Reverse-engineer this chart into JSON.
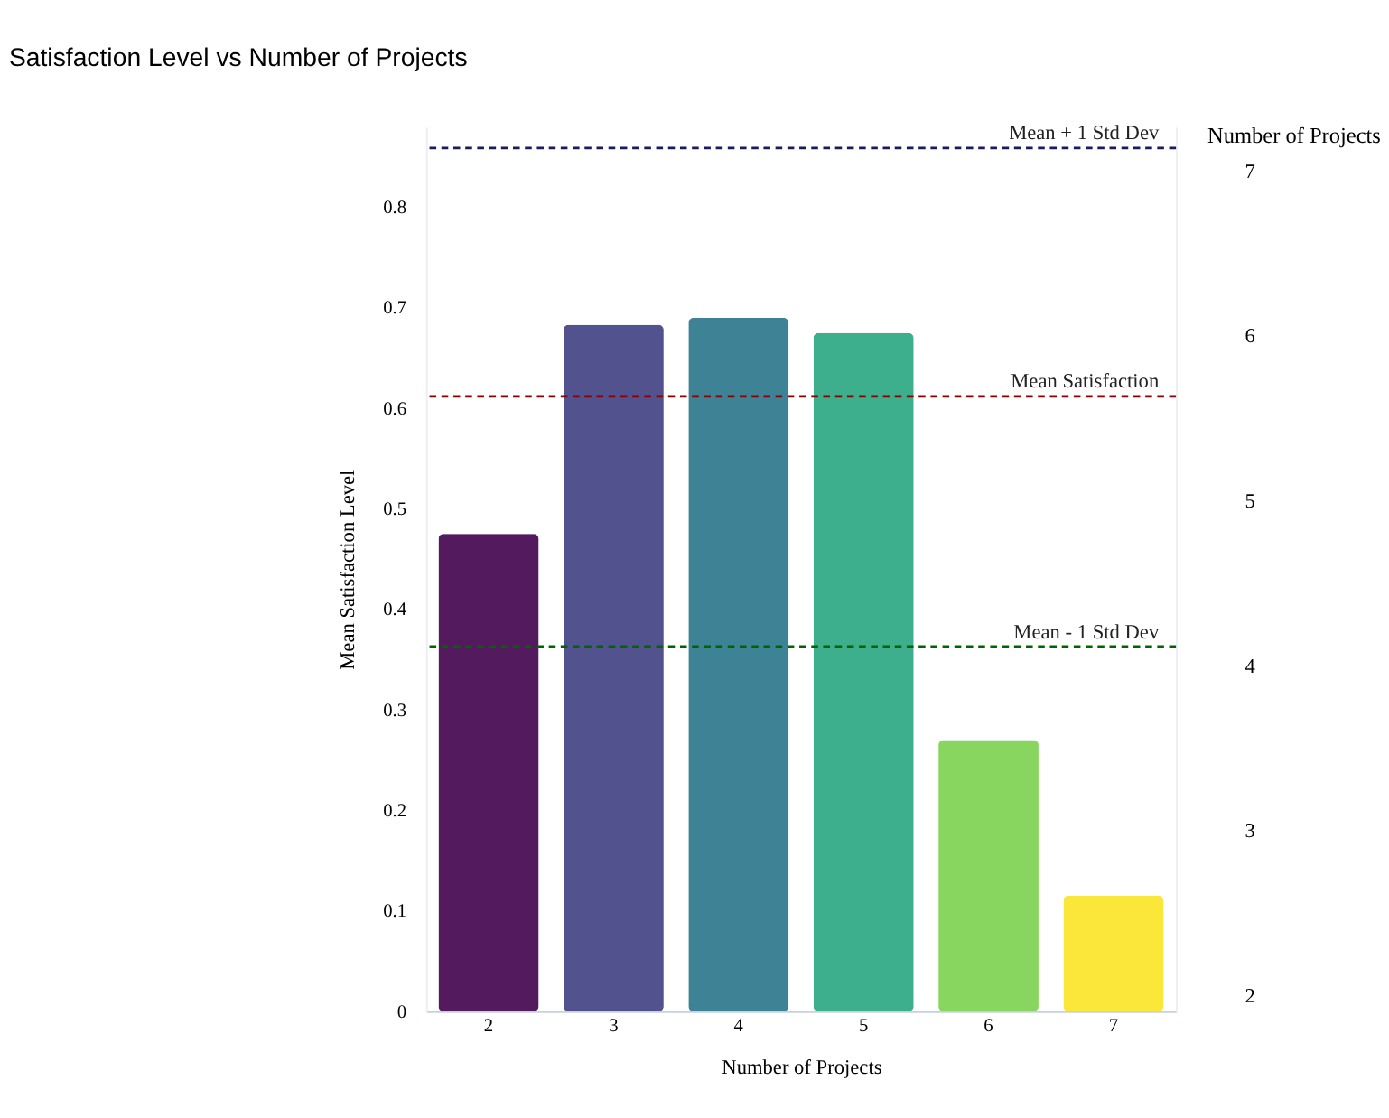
{
  "chart_data": {
    "type": "bar",
    "title": "Satisfaction Level vs Number of Projects",
    "xlabel": "Number of Projects",
    "ylabel": "Mean Satisfaction Level",
    "y2label": "Number of Projects",
    "categories": [
      "2",
      "3",
      "4",
      "5",
      "6",
      "7"
    ],
    "values": [
      0.475,
      0.683,
      0.69,
      0.675,
      0.27,
      0.115
    ],
    "colors": [
      "#541a5e",
      "#52528f",
      "#3e8296",
      "#3daf8c",
      "#88d660",
      "#fbe63a"
    ],
    "ylim": [
      0,
      0.88
    ],
    "yticks": [
      0,
      0.1,
      0.2,
      0.3,
      0.4,
      0.5,
      0.6,
      0.7,
      0.8
    ],
    "y2lim": [
      1.9,
      7.26
    ],
    "y2ticks": [
      2,
      3,
      4,
      5,
      6,
      7
    ],
    "ref_lines": [
      {
        "axis": "y",
        "value": 0.859,
        "label": "Mean + 1 Std Dev",
        "color": "#1a1a5e",
        "line_style": "dashed"
      },
      {
        "axis": "y",
        "value": 0.612,
        "label": "Mean Satisfaction",
        "color": "#8b0000",
        "line_style": "dashed"
      },
      {
        "axis": "y",
        "value": 0.363,
        "label": "Mean - 1 Std Dev",
        "color": "#006400",
        "line_style": "dashed"
      }
    ],
    "grid": false
  }
}
